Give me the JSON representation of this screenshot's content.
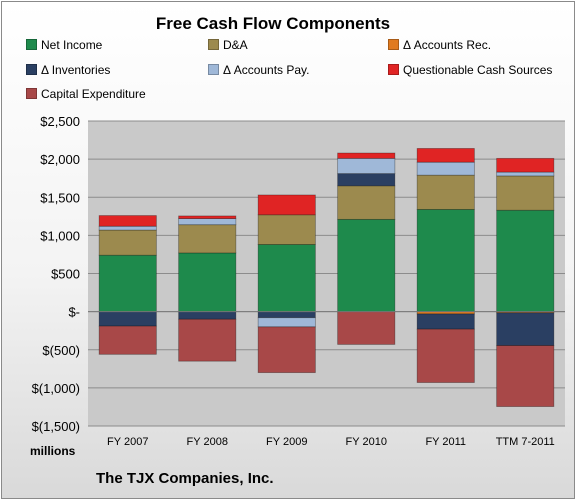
{
  "company_name": "The TJX Companies, Inc.",
  "units_label": "millions",
  "chart_data": {
    "type": "bar",
    "stacked": true,
    "title": "Free Cash Flow Components",
    "xlabel": "",
    "ylabel": "",
    "categories": [
      "FY 2007",
      "FY 2008",
      "FY 2009",
      "FY 2010",
      "FY 2011",
      "TTM 7-2011"
    ],
    "ylim": [
      -1500,
      2500
    ],
    "yticks": [
      -1500,
      -1000,
      -500,
      0,
      500,
      1000,
      1500,
      2000,
      2500
    ],
    "ytick_labels": [
      "$(1,500)",
      "$(1,000)",
      "$(500)",
      "$-",
      "$500",
      "$1,000",
      "$1,500",
      "$2,000",
      "$2,500"
    ],
    "grid": true,
    "legend_position": "top",
    "series": [
      {
        "name": "Net Income",
        "color": "#1e8a4c",
        "values": [
          740,
          770,
          880,
          1210,
          1340,
          1330
        ]
      },
      {
        "name": "D&A",
        "color": "#9c8a4e",
        "values": [
          330,
          370,
          390,
          440,
          450,
          450
        ]
      },
      {
        "name": "Δ Accounts Rec.",
        "color": "#e07a1f",
        "values": [
          0,
          0,
          0,
          0,
          -30,
          -15
        ]
      },
      {
        "name": "Δ Inventories",
        "color": "#2a3f62",
        "values": [
          -190,
          -100,
          -80,
          160,
          -200,
          -430
        ]
      },
      {
        "name": "Δ Accounts Pay.",
        "color": "#9fb8d8",
        "values": [
          50,
          80,
          -120,
          200,
          170,
          50
        ]
      },
      {
        "name": "Questionable Cash Sources",
        "color": "#e02424",
        "values": [
          140,
          35,
          260,
          70,
          180,
          180
        ]
      },
      {
        "name": "Capital Expenditure",
        "color": "#a84848",
        "values": [
          -370,
          -550,
          -600,
          -430,
          -700,
          -800
        ]
      }
    ]
  }
}
